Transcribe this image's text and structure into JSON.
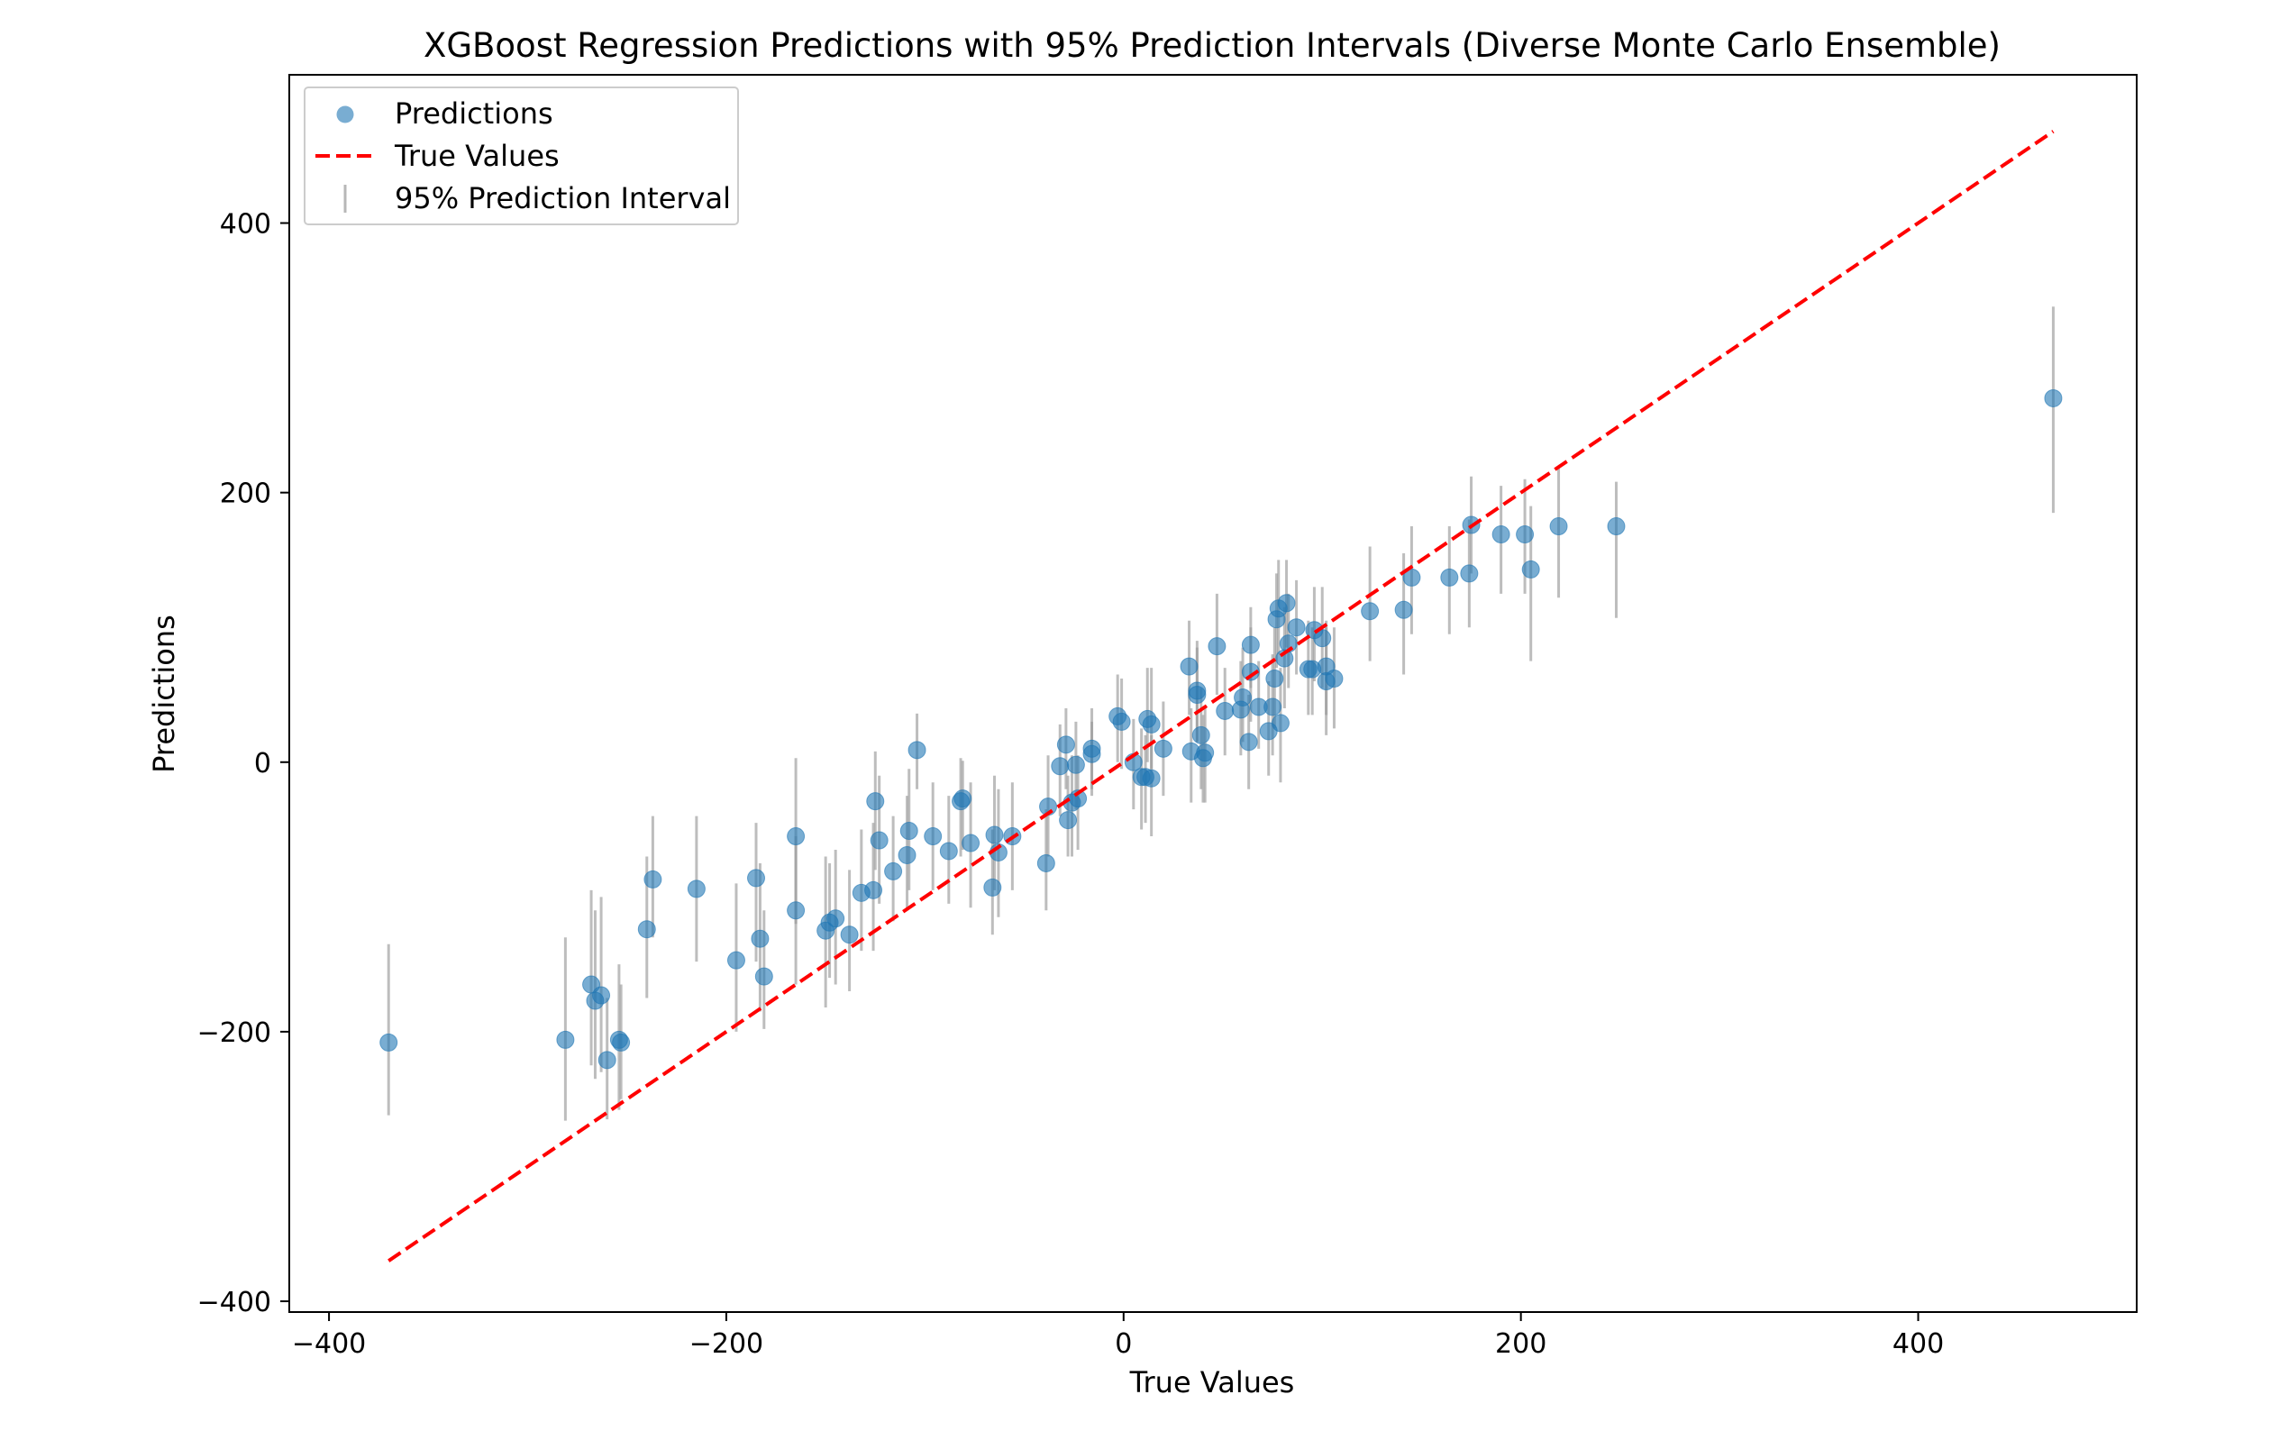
{
  "chart_data": {
    "type": "scatter",
    "title": "XGBoost Regression Predictions with 95% Prediction Intervals (Diverse Monte Carlo Ensemble)",
    "xlabel": "True Values",
    "ylabel": "Predictions",
    "xlim": [
      -420,
      510
    ],
    "ylim": [
      -408,
      510
    ],
    "xticks": [
      -400,
      -200,
      0,
      200,
      400
    ],
    "yticks": [
      -400,
      -200,
      0,
      200,
      400
    ],
    "xtick_labels": [
      "−400",
      "−200",
      "0",
      "200",
      "400"
    ],
    "ytick_labels": [
      "−400",
      "−200",
      "0",
      "200",
      "400"
    ],
    "grid": false,
    "legend": {
      "position": "top-left",
      "entries": [
        "Predictions",
        "True Values",
        "95% Prediction Interval"
      ]
    },
    "colors": {
      "points": "#1f77b4",
      "line": "#ff0000",
      "errorbar": "#999999"
    },
    "identity_line": {
      "name": "True Values",
      "x": [
        -370,
        468
      ],
      "y": [
        -370,
        468
      ]
    },
    "series": [
      {
        "name": "Predictions",
        "points": [
          {
            "x": -370,
            "y": -208,
            "lo": -262,
            "hi": -135
          },
          {
            "x": -281,
            "y": -206,
            "lo": -266,
            "hi": -130
          },
          {
            "x": -268,
            "y": -165,
            "lo": -225,
            "hi": -95
          },
          {
            "x": -266,
            "y": -177,
            "lo": -235,
            "hi": -110
          },
          {
            "x": -263,
            "y": -173,
            "lo": -230,
            "hi": -100
          },
          {
            "x": -260,
            "y": -221,
            "lo": -265,
            "hi": -175
          },
          {
            "x": -254,
            "y": -206,
            "lo": -258,
            "hi": -150
          },
          {
            "x": -253,
            "y": -208,
            "lo": -250,
            "hi": -165
          },
          {
            "x": -240,
            "y": -124,
            "lo": -175,
            "hi": -70
          },
          {
            "x": -237,
            "y": -87,
            "lo": -130,
            "hi": -40
          },
          {
            "x": -215,
            "y": -94,
            "lo": -148,
            "hi": -40
          },
          {
            "x": -195,
            "y": -147,
            "lo": -200,
            "hi": -90
          },
          {
            "x": -185,
            "y": -86,
            "lo": -148,
            "hi": -45
          },
          {
            "x": -183,
            "y": -131,
            "lo": -185,
            "hi": -75
          },
          {
            "x": -181,
            "y": -159,
            "lo": -198,
            "hi": -110
          },
          {
            "x": -165,
            "y": -55,
            "lo": -120,
            "hi": 3
          },
          {
            "x": -165,
            "y": -110,
            "lo": -165,
            "hi": -55
          },
          {
            "x": -150,
            "y": -125,
            "lo": -182,
            "hi": -70
          },
          {
            "x": -148,
            "y": -119,
            "lo": -160,
            "hi": -75
          },
          {
            "x": -145,
            "y": -116,
            "lo": -165,
            "hi": -65
          },
          {
            "x": -138,
            "y": -128,
            "lo": -170,
            "hi": -80
          },
          {
            "x": -132,
            "y": -97,
            "lo": -140,
            "hi": -50
          },
          {
            "x": -126,
            "y": -95,
            "lo": -140,
            "hi": -45
          },
          {
            "x": -125,
            "y": -29,
            "lo": -80,
            "hi": 8
          },
          {
            "x": -123,
            "y": -58,
            "lo": -105,
            "hi": -10
          },
          {
            "x": -116,
            "y": -81,
            "lo": -118,
            "hi": -40
          },
          {
            "x": -109,
            "y": -69,
            "lo": -110,
            "hi": -25
          },
          {
            "x": -108,
            "y": -51,
            "lo": -95,
            "hi": -5
          },
          {
            "x": -104,
            "y": 9,
            "lo": -20,
            "hi": 36
          },
          {
            "x": -96,
            "y": -55,
            "lo": -95,
            "hi": -15
          },
          {
            "x": -88,
            "y": -66,
            "lo": -105,
            "hi": -25
          },
          {
            "x": -82,
            "y": -29,
            "lo": -70,
            "hi": 3
          },
          {
            "x": -81,
            "y": -27,
            "lo": -65,
            "hi": 1
          },
          {
            "x": -77,
            "y": -60,
            "lo": -108,
            "hi": -15
          },
          {
            "x": -66,
            "y": -93,
            "lo": -128,
            "hi": -50
          },
          {
            "x": -65,
            "y": -54,
            "lo": -95,
            "hi": -10
          },
          {
            "x": -63,
            "y": -67,
            "lo": -115,
            "hi": -20
          },
          {
            "x": -56,
            "y": -55,
            "lo": -95,
            "hi": -15
          },
          {
            "x": -39,
            "y": -75,
            "lo": -110,
            "hi": -35
          },
          {
            "x": -38,
            "y": -33,
            "lo": -70,
            "hi": 5
          },
          {
            "x": -32,
            "y": -3,
            "lo": -40,
            "hi": 28
          },
          {
            "x": -29,
            "y": 13,
            "lo": -20,
            "hi": 40
          },
          {
            "x": -28,
            "y": -43,
            "lo": -70,
            "hi": -10
          },
          {
            "x": -26,
            "y": -30,
            "lo": -70,
            "hi": 5
          },
          {
            "x": -24,
            "y": -2,
            "lo": -35,
            "hi": 30
          },
          {
            "x": -23,
            "y": -27,
            "lo": -65,
            "hi": 5
          },
          {
            "x": -16,
            "y": 10,
            "lo": -20,
            "hi": 40
          },
          {
            "x": -16,
            "y": 6,
            "lo": -25,
            "hi": 30
          },
          {
            "x": -3,
            "y": 34,
            "lo": 0,
            "hi": 65
          },
          {
            "x": -1,
            "y": 30,
            "lo": -5,
            "hi": 62
          },
          {
            "x": 5,
            "y": 0,
            "lo": -35,
            "hi": 32
          },
          {
            "x": 9,
            "y": -11,
            "lo": -50,
            "hi": 25
          },
          {
            "x": 11,
            "y": -11,
            "lo": -45,
            "hi": 20
          },
          {
            "x": 12,
            "y": 32,
            "lo": 0,
            "hi": 70
          },
          {
            "x": 14,
            "y": 28,
            "lo": -5,
            "hi": 70
          },
          {
            "x": 14,
            "y": -12,
            "lo": -55,
            "hi": 20
          },
          {
            "x": 20,
            "y": 10,
            "lo": -25,
            "hi": 45
          },
          {
            "x": 33,
            "y": 71,
            "lo": 35,
            "hi": 105
          },
          {
            "x": 34,
            "y": 8,
            "lo": -30,
            "hi": 40
          },
          {
            "x": 37,
            "y": 50,
            "lo": 15,
            "hi": 85
          },
          {
            "x": 37,
            "y": 53,
            "lo": 15,
            "hi": 90
          },
          {
            "x": 39,
            "y": 20,
            "lo": -20,
            "hi": 55
          },
          {
            "x": 40,
            "y": 3,
            "lo": -30,
            "hi": 35
          },
          {
            "x": 41,
            "y": 7,
            "lo": -30,
            "hi": 40
          },
          {
            "x": 47,
            "y": 86,
            "lo": 50,
            "hi": 125
          },
          {
            "x": 51,
            "y": 38,
            "lo": 5,
            "hi": 70
          },
          {
            "x": 59,
            "y": 39,
            "lo": 5,
            "hi": 75
          },
          {
            "x": 60,
            "y": 48,
            "lo": 15,
            "hi": 85
          },
          {
            "x": 63,
            "y": 15,
            "lo": -20,
            "hi": 50
          },
          {
            "x": 64,
            "y": 87,
            "lo": 55,
            "hi": 115
          },
          {
            "x": 64,
            "y": 67,
            "lo": 30,
            "hi": 100
          },
          {
            "x": 68,
            "y": 41,
            "lo": 10,
            "hi": 75
          },
          {
            "x": 73,
            "y": 23,
            "lo": -10,
            "hi": 60
          },
          {
            "x": 75,
            "y": 41,
            "lo": 5,
            "hi": 80
          },
          {
            "x": 76,
            "y": 62,
            "lo": 25,
            "hi": 100
          },
          {
            "x": 77,
            "y": 106,
            "lo": 70,
            "hi": 140
          },
          {
            "x": 78,
            "y": 114,
            "lo": 80,
            "hi": 150
          },
          {
            "x": 79,
            "y": 29,
            "lo": -15,
            "hi": 70
          },
          {
            "x": 81,
            "y": 77,
            "lo": 40,
            "hi": 115
          },
          {
            "x": 82,
            "y": 118,
            "lo": 85,
            "hi": 150
          },
          {
            "x": 83,
            "y": 88,
            "lo": 55,
            "hi": 125
          },
          {
            "x": 87,
            "y": 100,
            "lo": 65,
            "hi": 135
          },
          {
            "x": 93,
            "y": 69,
            "lo": 35,
            "hi": 105
          },
          {
            "x": 95,
            "y": 69,
            "lo": 35,
            "hi": 100
          },
          {
            "x": 96,
            "y": 98,
            "lo": 60,
            "hi": 130
          },
          {
            "x": 100,
            "y": 92,
            "lo": 55,
            "hi": 130
          },
          {
            "x": 102,
            "y": 71,
            "lo": 35,
            "hi": 105
          },
          {
            "x": 102,
            "y": 60,
            "lo": 20,
            "hi": 100
          },
          {
            "x": 106,
            "y": 62,
            "lo": 25,
            "hi": 100
          },
          {
            "x": 124,
            "y": 112,
            "lo": 75,
            "hi": 160
          },
          {
            "x": 141,
            "y": 113,
            "lo": 65,
            "hi": 155
          },
          {
            "x": 145,
            "y": 137,
            "lo": 95,
            "hi": 175
          },
          {
            "x": 164,
            "y": 137,
            "lo": 95,
            "hi": 175
          },
          {
            "x": 174,
            "y": 140,
            "lo": 100,
            "hi": 180
          },
          {
            "x": 175,
            "y": 176,
            "lo": 140,
            "hi": 212
          },
          {
            "x": 190,
            "y": 169,
            "lo": 125,
            "hi": 205
          },
          {
            "x": 202,
            "y": 169,
            "lo": 125,
            "hi": 210
          },
          {
            "x": 205,
            "y": 143,
            "lo": 75,
            "hi": 190
          },
          {
            "x": 219,
            "y": 175,
            "lo": 122,
            "hi": 218
          },
          {
            "x": 248,
            "y": 175,
            "lo": 107,
            "hi": 208
          },
          {
            "x": 468,
            "y": 270,
            "lo": 185,
            "hi": 338
          }
        ]
      }
    ]
  }
}
